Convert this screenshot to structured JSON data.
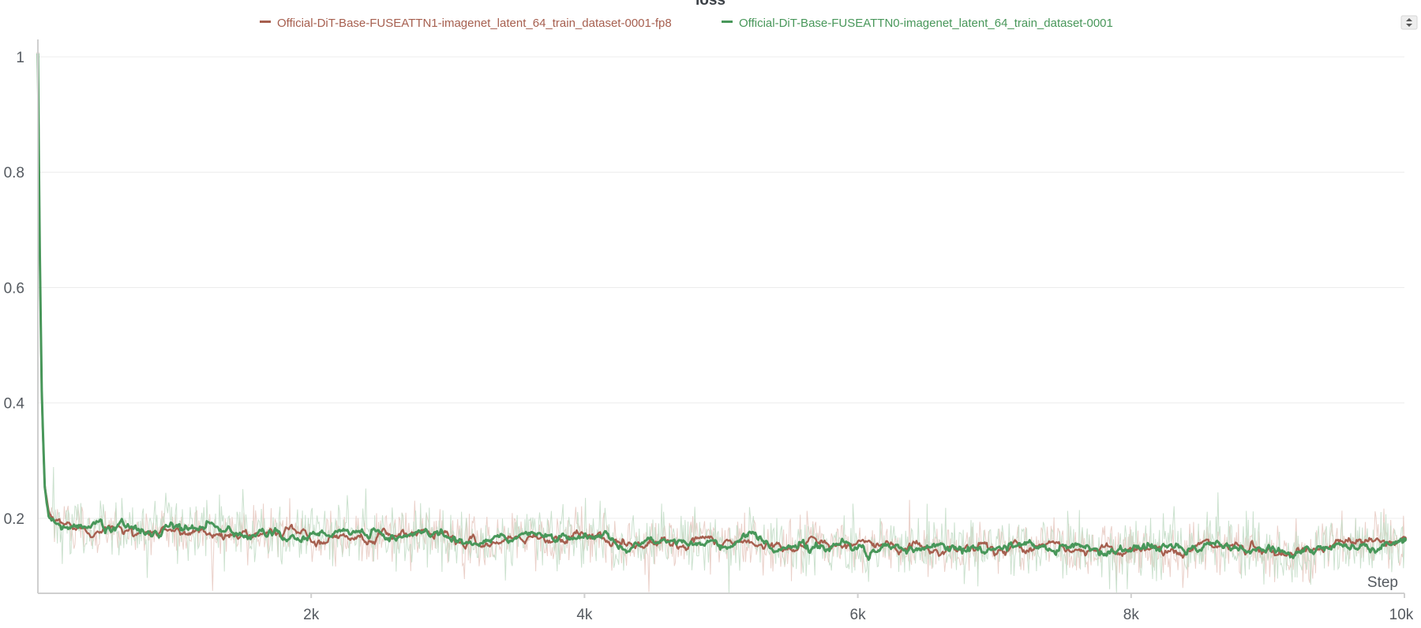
{
  "chart_data": {
    "type": "line",
    "title": "loss",
    "xlabel": "Step",
    "ylabel": "",
    "xlim": [
      0,
      10000
    ],
    "ylim": [
      0.07,
      1.03
    ],
    "x_ticks": [
      {
        "value": 2000,
        "label": "2k"
      },
      {
        "value": 4000,
        "label": "4k"
      },
      {
        "value": 6000,
        "label": "6k"
      },
      {
        "value": 8000,
        "label": "8k"
      },
      {
        "value": 10000,
        "label": "10k"
      }
    ],
    "y_ticks": [
      {
        "value": 0.2,
        "label": "0.2"
      },
      {
        "value": 0.4,
        "label": "0.4"
      },
      {
        "value": 0.6,
        "label": "0.6"
      },
      {
        "value": 0.8,
        "label": "0.8"
      },
      {
        "value": 1.0,
        "label": "1"
      }
    ],
    "grid": "horizontal",
    "legend_position": "top",
    "series": [
      {
        "name": "Official-DiT-Base-FUSEATTN1-imagenet_latent_64_train_dataset-0001-fp8",
        "color": "#a65f4f",
        "raw_color": "#e6c8c0",
        "x": [
          0,
          15,
          30,
          50,
          80,
          120,
          200,
          300,
          400,
          500,
          600,
          700,
          800,
          900,
          1000,
          1200,
          1400,
          1600,
          1800,
          2000,
          2200,
          2400,
          2600,
          2800,
          3000,
          3200,
          3400,
          3600,
          3800,
          4000,
          4200,
          4400,
          4600,
          4800,
          5000,
          5200,
          5400,
          5600,
          5800,
          6000,
          6200,
          6400,
          6600,
          6800,
          7000,
          7200,
          7400,
          7600,
          7800,
          8000,
          8200,
          8400,
          8600,
          8800,
          9000,
          9200,
          9400,
          9600,
          9800,
          10000
        ],
        "values": [
          1.0,
          0.62,
          0.38,
          0.25,
          0.205,
          0.192,
          0.19,
          0.188,
          0.186,
          0.184,
          0.18,
          0.178,
          0.176,
          0.175,
          0.18,
          0.178,
          0.176,
          0.172,
          0.17,
          0.172,
          0.168,
          0.17,
          0.166,
          0.172,
          0.168,
          0.155,
          0.166,
          0.17,
          0.168,
          0.17,
          0.155,
          0.158,
          0.162,
          0.156,
          0.155,
          0.158,
          0.15,
          0.156,
          0.152,
          0.155,
          0.15,
          0.152,
          0.15,
          0.148,
          0.152,
          0.15,
          0.155,
          0.148,
          0.15,
          0.152,
          0.146,
          0.15,
          0.155,
          0.15,
          0.145,
          0.148,
          0.152,
          0.155,
          0.158,
          0.165
        ],
        "noise_std": 0.022
      },
      {
        "name": "Official-DiT-Base-FUSEATTN0-imagenet_latent_64_train_dataset-0001",
        "color": "#48975a",
        "raw_color": "#c2dcc6",
        "x": [
          0,
          15,
          30,
          50,
          80,
          120,
          200,
          300,
          400,
          500,
          600,
          700,
          800,
          900,
          1000,
          1200,
          1400,
          1600,
          1800,
          2000,
          2200,
          2400,
          2600,
          2800,
          3000,
          3200,
          3400,
          3600,
          3800,
          4000,
          4200,
          4400,
          4600,
          4800,
          5000,
          5200,
          5400,
          5600,
          5800,
          6000,
          6200,
          6400,
          6600,
          6800,
          7000,
          7200,
          7400,
          7600,
          7800,
          8000,
          8200,
          8400,
          8600,
          8800,
          9000,
          9200,
          9400,
          9600,
          9800,
          10000
        ],
        "values": [
          1.01,
          0.64,
          0.4,
          0.26,
          0.208,
          0.193,
          0.188,
          0.186,
          0.185,
          0.183,
          0.181,
          0.177,
          0.175,
          0.174,
          0.178,
          0.177,
          0.175,
          0.171,
          0.17,
          0.171,
          0.167,
          0.169,
          0.165,
          0.171,
          0.167,
          0.153,
          0.165,
          0.169,
          0.167,
          0.168,
          0.154,
          0.157,
          0.16,
          0.155,
          0.154,
          0.157,
          0.149,
          0.155,
          0.151,
          0.154,
          0.149,
          0.151,
          0.149,
          0.147,
          0.151,
          0.149,
          0.154,
          0.147,
          0.149,
          0.151,
          0.145,
          0.149,
          0.154,
          0.149,
          0.144,
          0.147,
          0.151,
          0.154,
          0.157,
          0.163
        ],
        "noise_std": 0.026
      }
    ]
  },
  "toolbar": {
    "scroll_icon": "scroll-arrows-icon"
  },
  "colors": {
    "grid": "#ececec",
    "axis": "#cfcfcf",
    "tick_text": "#555a60"
  }
}
